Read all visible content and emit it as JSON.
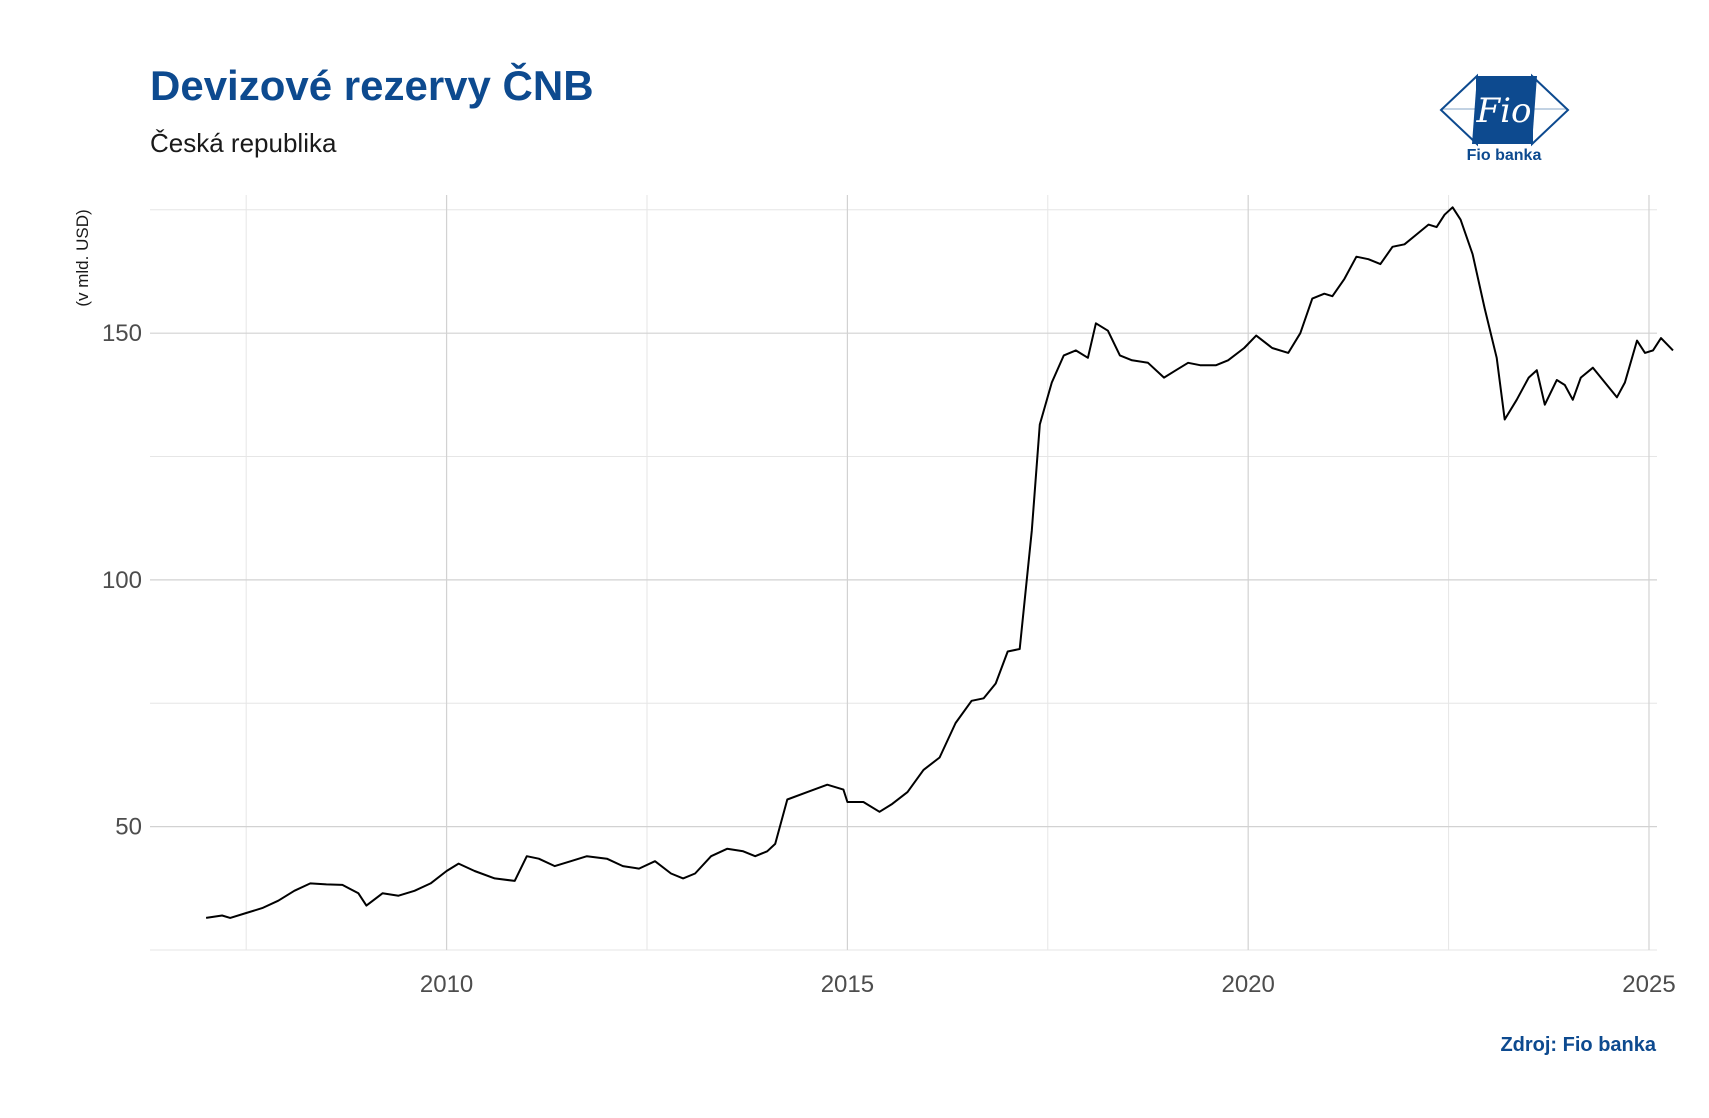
{
  "header": {
    "title": "Devizové rezervy ČNB",
    "subtitle": "Česká republika"
  },
  "logo": {
    "brand_name": "Fio banka",
    "mark_text": "Fio",
    "icon": "fio-banka-logo-icon",
    "color": "#0d4a8f"
  },
  "footer": {
    "source": "Zdroj: Fio banka"
  },
  "chart_data": {
    "type": "line",
    "title": "Devizové rezervy ČNB",
    "subtitle": "Česká republika",
    "xlabel": "",
    "ylabel": "(v mld. USD)",
    "xlim": [
      2006.3,
      2025.1
    ],
    "ylim": [
      25,
      178
    ],
    "x_ticks": [
      2010,
      2015,
      2020,
      2025
    ],
    "y_ticks": [
      50,
      100,
      150
    ],
    "grid": true,
    "legend": "none",
    "line_color": "#000000",
    "series": [
      {
        "values": [
          [
            2007.0,
            31.5
          ],
          [
            2007.2,
            32.0
          ],
          [
            2007.3,
            31.5
          ],
          [
            2007.5,
            32.5
          ],
          [
            2007.7,
            33.5
          ],
          [
            2007.9,
            35.0
          ],
          [
            2008.1,
            37.0
          ],
          [
            2008.3,
            38.5
          ],
          [
            2008.5,
            38.3
          ],
          [
            2008.7,
            38.2
          ],
          [
            2008.9,
            36.5
          ],
          [
            2009.0,
            34.0
          ],
          [
            2009.2,
            36.5
          ],
          [
            2009.4,
            36.0
          ],
          [
            2009.6,
            37.0
          ],
          [
            2009.8,
            38.5
          ],
          [
            2010.0,
            41.0
          ],
          [
            2010.15,
            42.5
          ],
          [
            2010.35,
            41.0
          ],
          [
            2010.6,
            39.5
          ],
          [
            2010.85,
            39.0
          ],
          [
            2011.0,
            44.0
          ],
          [
            2011.15,
            43.5
          ],
          [
            2011.35,
            42.0
          ],
          [
            2011.55,
            43.0
          ],
          [
            2011.75,
            44.0
          ],
          [
            2012.0,
            43.5
          ],
          [
            2012.2,
            42.0
          ],
          [
            2012.4,
            41.5
          ],
          [
            2012.6,
            43.0
          ],
          [
            2012.8,
            40.5
          ],
          [
            2012.95,
            39.5
          ],
          [
            2013.1,
            40.5
          ],
          [
            2013.3,
            44.0
          ],
          [
            2013.5,
            45.5
          ],
          [
            2013.7,
            45.0
          ],
          [
            2013.85,
            44.0
          ],
          [
            2014.0,
            45.0
          ],
          [
            2014.1,
            46.5
          ],
          [
            2014.25,
            55.5
          ],
          [
            2014.5,
            57.0
          ],
          [
            2014.75,
            58.5
          ],
          [
            2014.95,
            57.5
          ],
          [
            2015.0,
            55.0
          ],
          [
            2015.2,
            55.0
          ],
          [
            2015.4,
            53.0
          ],
          [
            2015.55,
            54.5
          ],
          [
            2015.75,
            57.0
          ],
          [
            2015.95,
            61.5
          ],
          [
            2016.15,
            64.0
          ],
          [
            2016.35,
            71.0
          ],
          [
            2016.55,
            75.5
          ],
          [
            2016.7,
            76.0
          ],
          [
            2016.85,
            79.0
          ],
          [
            2017.0,
            85.5
          ],
          [
            2017.15,
            86.0
          ],
          [
            2017.3,
            110.0
          ],
          [
            2017.4,
            131.5
          ],
          [
            2017.55,
            140.0
          ],
          [
            2017.7,
            145.5
          ],
          [
            2017.85,
            146.5
          ],
          [
            2018.0,
            145.0
          ],
          [
            2018.1,
            152.0
          ],
          [
            2018.25,
            150.5
          ],
          [
            2018.4,
            145.5
          ],
          [
            2018.55,
            144.5
          ],
          [
            2018.75,
            144.0
          ],
          [
            2018.95,
            141.0
          ],
          [
            2019.1,
            142.5
          ],
          [
            2019.25,
            144.0
          ],
          [
            2019.4,
            143.5
          ],
          [
            2019.6,
            143.5
          ],
          [
            2019.75,
            144.5
          ],
          [
            2019.95,
            147.0
          ],
          [
            2020.1,
            149.5
          ],
          [
            2020.3,
            147.0
          ],
          [
            2020.5,
            146.0
          ],
          [
            2020.65,
            150.0
          ],
          [
            2020.8,
            157.0
          ],
          [
            2020.95,
            158.0
          ],
          [
            2021.05,
            157.5
          ],
          [
            2021.2,
            161.0
          ],
          [
            2021.35,
            165.5
          ],
          [
            2021.5,
            165.0
          ],
          [
            2021.65,
            164.0
          ],
          [
            2021.8,
            167.5
          ],
          [
            2021.95,
            168.0
          ],
          [
            2022.1,
            170.0
          ],
          [
            2022.25,
            172.0
          ],
          [
            2022.35,
            171.5
          ],
          [
            2022.45,
            174.0
          ],
          [
            2022.55,
            175.5
          ],
          [
            2022.65,
            173.0
          ],
          [
            2022.8,
            166.0
          ],
          [
            2022.95,
            155.0
          ],
          [
            2023.1,
            145.0
          ],
          [
            2023.2,
            132.5
          ],
          [
            2023.35,
            136.5
          ],
          [
            2023.5,
            141.0
          ],
          [
            2023.6,
            142.5
          ],
          [
            2023.7,
            135.5
          ],
          [
            2023.85,
            140.5
          ],
          [
            2023.95,
            139.5
          ],
          [
            2024.05,
            136.5
          ],
          [
            2024.15,
            141.0
          ],
          [
            2024.3,
            143.0
          ],
          [
            2024.45,
            140.0
          ],
          [
            2024.6,
            137.0
          ],
          [
            2024.7,
            140.0
          ],
          [
            2024.85,
            148.5
          ],
          [
            2024.95,
            146.0
          ],
          [
            2025.05,
            146.5
          ],
          [
            2025.15,
            149.0
          ],
          [
            2025.3,
            146.5
          ]
        ]
      }
    ]
  }
}
